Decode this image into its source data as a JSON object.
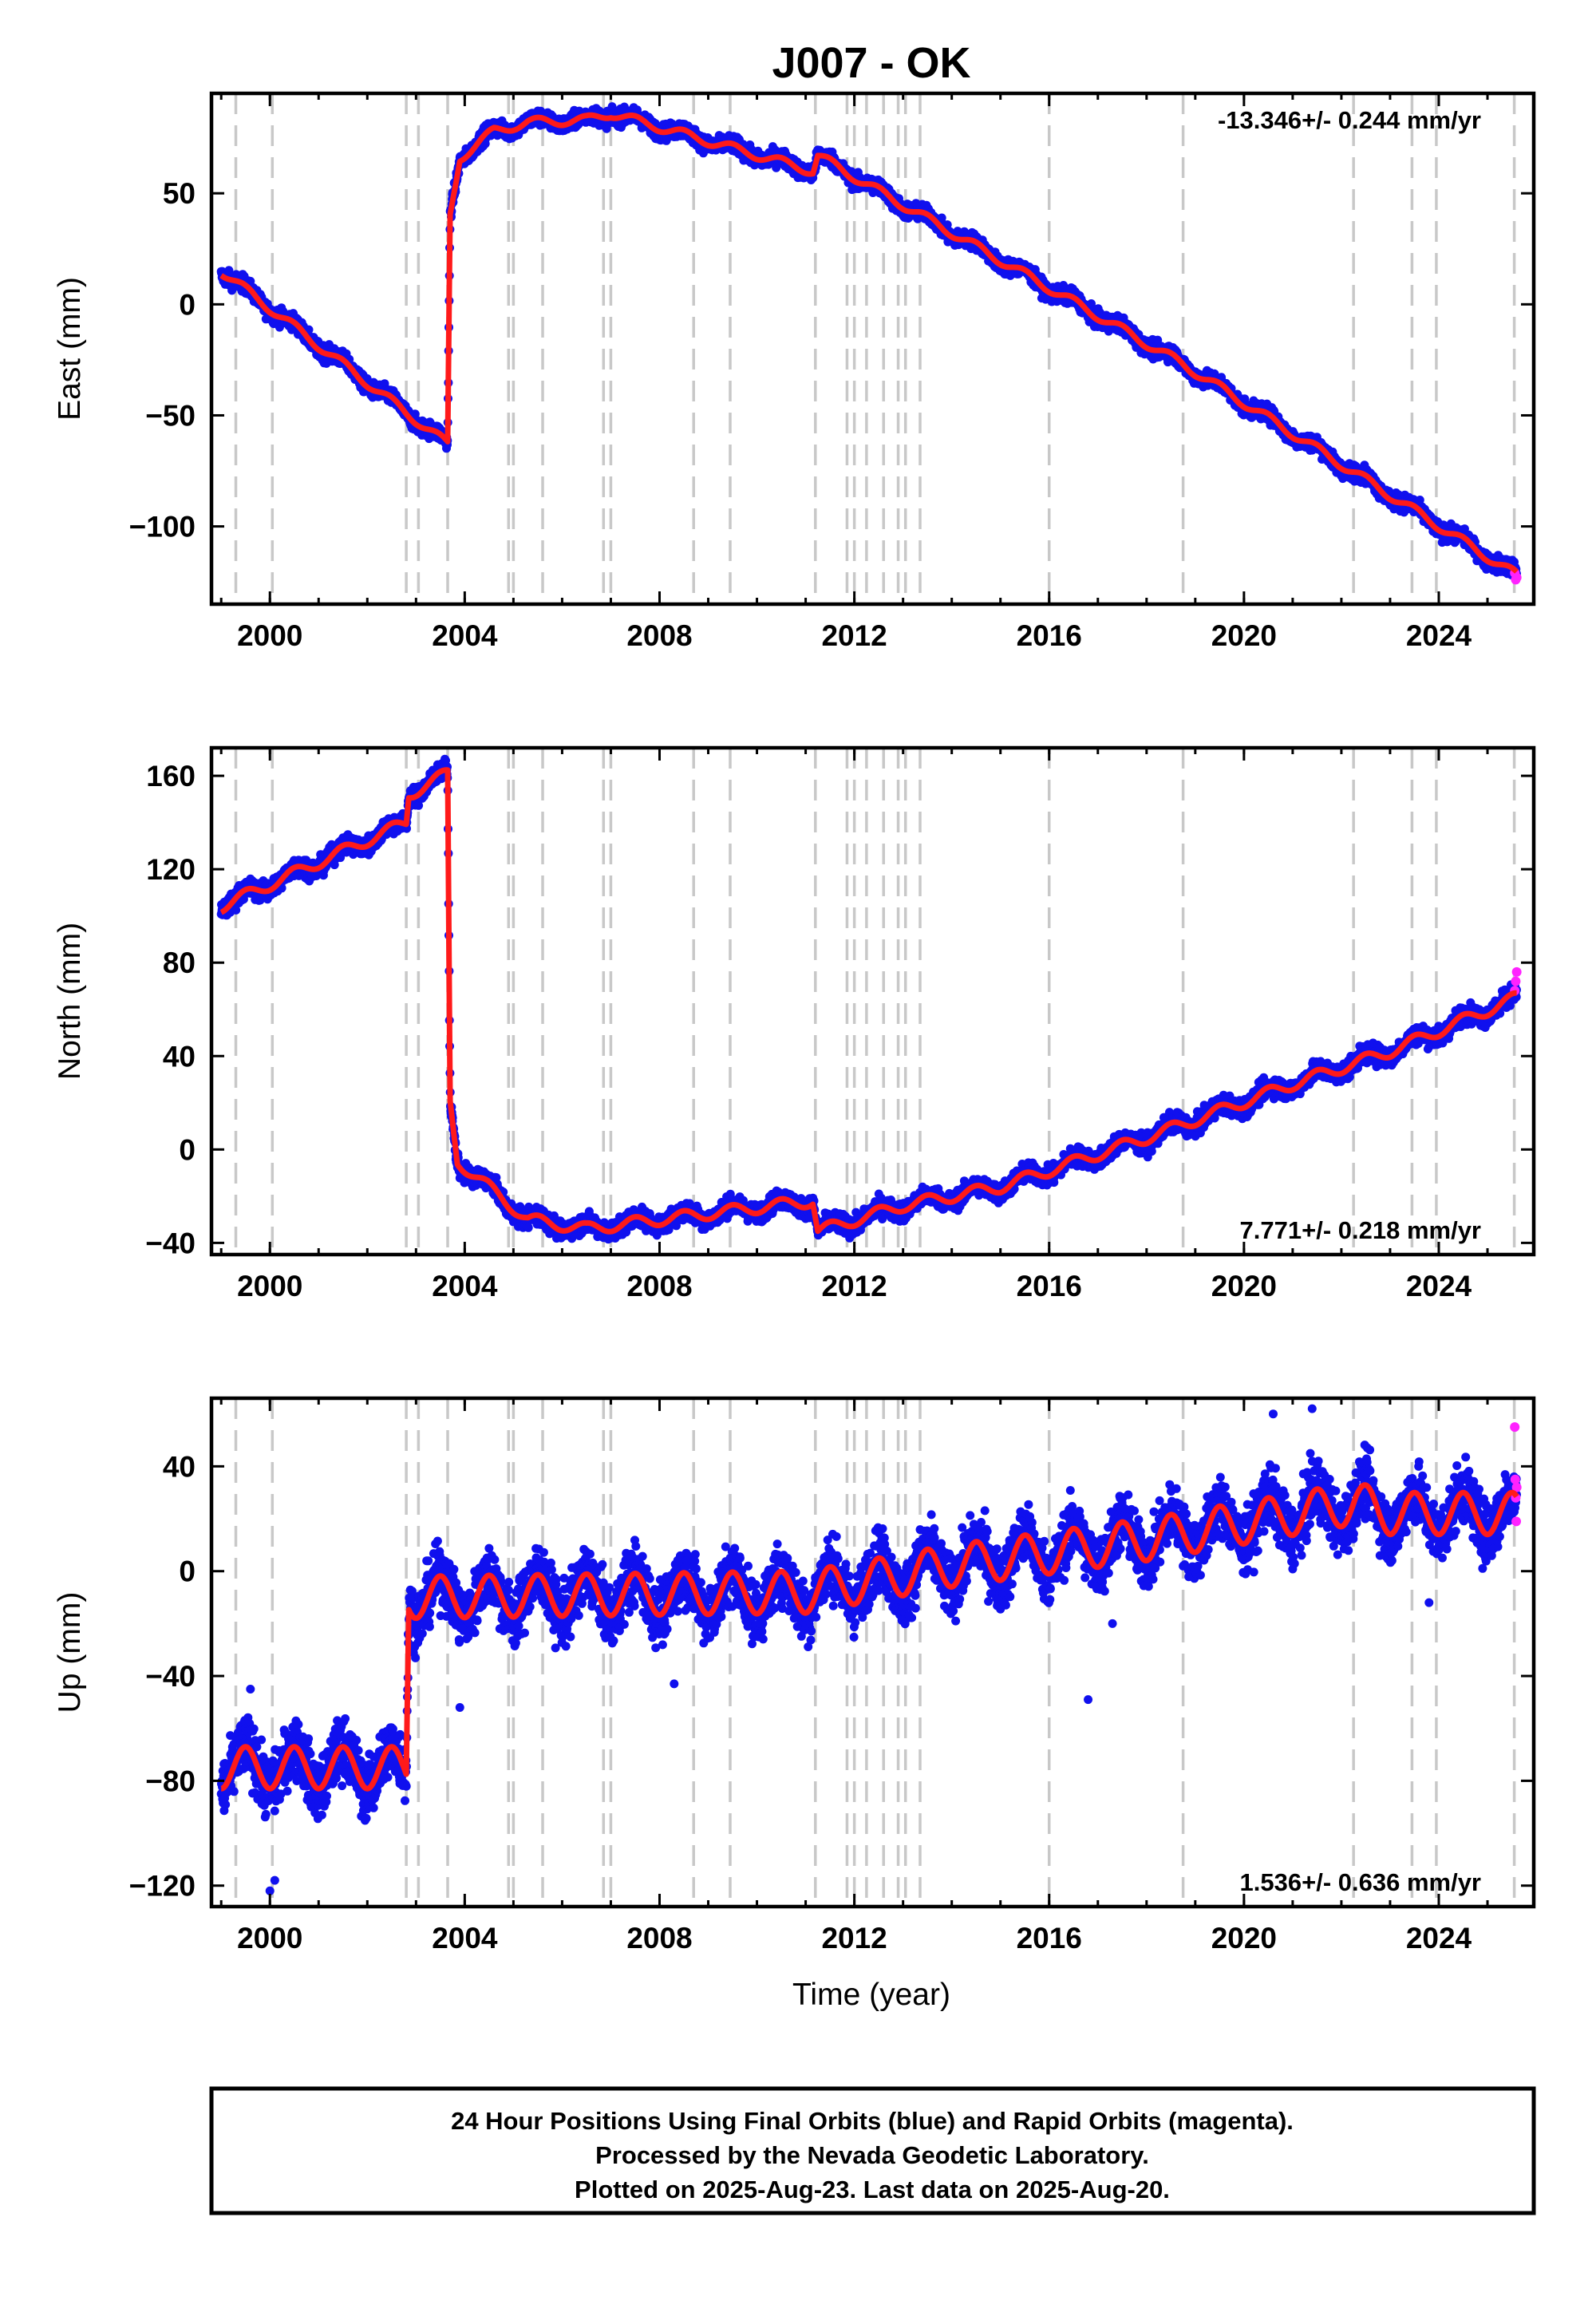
{
  "title": "J007 - OK",
  "x_axis_label": "Time (year)",
  "caption": [
    "24 Hour Positions Using Final Orbits (blue) and Rapid Orbits (magenta).",
    "Processed by the Nevada Geodetic Laboratory.",
    "Plotted on 2025-Aug-23. Last data on 2025-Aug-20."
  ],
  "colors": {
    "final_orbits": "#1010ee",
    "rapid_orbits": "#ff22ff",
    "model": "#ff1a1a",
    "event_lines": "#c8c8c8"
  },
  "chart_data": [
    {
      "type": "scatter",
      "panel": "East",
      "ylabel": "East (mm)",
      "xlim": [
        1998.8,
        2025.95
      ],
      "ylim": [
        -135,
        95
      ],
      "xticks": [
        2000,
        2004,
        2008,
        2012,
        2016,
        2020,
        2024
      ],
      "yticks": [
        -100,
        -50,
        0,
        50
      ],
      "rate_text": "-13.346+/- 0.244 mm/yr",
      "rate_position": "top-right",
      "grid": false,
      "event_lines": [
        1999.3,
        2000.05,
        2002.8,
        2003.05,
        2003.65,
        2004.9,
        2005.0,
        2005.6,
        2006.85,
        2007.0,
        2008.7,
        2009.45,
        2011.2,
        2011.85,
        2012.0,
        2012.25,
        2012.6,
        2012.9,
        2013.05,
        2013.35,
        2016.0,
        2018.75,
        2022.25,
        2023.45,
        2023.95,
        2025.55
      ],
      "model_breakpoints": [
        [
          1999.0,
          15
        ],
        [
          2003.65,
          -63
        ],
        [
          2003.7,
          40
        ],
        [
          2003.9,
          66
        ],
        [
          2004.6,
          78
        ],
        [
          2005.3,
          82
        ],
        [
          2006.5,
          83
        ],
        [
          2007.0,
          86
        ],
        [
          2011.15,
          60
        ],
        [
          2011.25,
          67
        ],
        [
          2012.5,
          51
        ],
        [
          2018.75,
          -27
        ],
        [
          2025.6,
          -122
        ]
      ],
      "seasonal_amplitude": 2,
      "scatter_noise": 2.5,
      "rapid_points": [
        [
          2025.56,
          -121
        ],
        [
          2025.58,
          -124
        ],
        [
          2025.6,
          -123
        ]
      ],
      "series": [
        {
          "name": "Final Orbits"
        },
        {
          "name": "Rapid Orbits"
        }
      ]
    },
    {
      "type": "scatter",
      "panel": "North",
      "ylabel": "North (mm)",
      "xlim": [
        1998.8,
        2025.95
      ],
      "ylim": [
        -45,
        172
      ],
      "xticks": [
        2000,
        2004,
        2008,
        2012,
        2016,
        2020,
        2024
      ],
      "yticks": [
        -40,
        0,
        40,
        80,
        120,
        160
      ],
      "rate_text": "7.771+/- 0.218 mm/yr",
      "rate_position": "bottom-right",
      "grid": false,
      "event_lines": [
        1999.3,
        2000.05,
        2002.8,
        2003.05,
        2003.65,
        2004.9,
        2005.0,
        2005.6,
        2006.85,
        2007.0,
        2008.7,
        2009.45,
        2011.2,
        2011.85,
        2012.0,
        2012.25,
        2012.6,
        2012.9,
        2013.05,
        2013.35,
        2016.0,
        2018.75,
        2022.25,
        2023.45,
        2023.95,
        2025.55
      ],
      "model_breakpoints": [
        [
          1999.0,
          104
        ],
        [
          2002.8,
          140
        ],
        [
          2002.85,
          152
        ],
        [
          2003.65,
          161
        ],
        [
          2003.7,
          20
        ],
        [
          2003.85,
          -5
        ],
        [
          2004.6,
          -18
        ],
        [
          2005.3,
          -30
        ],
        [
          2006.5,
          -34
        ],
        [
          2008.0,
          -30
        ],
        [
          2011.15,
          -22
        ],
        [
          2011.25,
          -35
        ],
        [
          2013.0,
          -24
        ],
        [
          2015.0,
          -16
        ],
        [
          2018.0,
          5
        ],
        [
          2021.0,
          28
        ],
        [
          2023.0,
          42
        ],
        [
          2025.6,
          65
        ]
      ],
      "seasonal_amplitude": 2.5,
      "scatter_noise": 2.8,
      "rapid_points": [
        [
          2025.56,
          68
        ],
        [
          2025.58,
          72
        ],
        [
          2025.6,
          76
        ]
      ],
      "series": [
        {
          "name": "Final Orbits"
        },
        {
          "name": "Rapid Orbits"
        }
      ]
    },
    {
      "type": "scatter",
      "panel": "Up",
      "ylabel": "Up (mm)",
      "xlim": [
        1998.8,
        2025.95
      ],
      "ylim": [
        -128,
        66
      ],
      "xticks": [
        2000,
        2004,
        2008,
        2012,
        2016,
        2020,
        2024
      ],
      "yticks": [
        -120,
        -80,
        -40,
        0,
        40
      ],
      "rate_text": "1.536+/- 0.636 mm/yr",
      "rate_position": "bottom-right",
      "grid": false,
      "event_lines": [
        1999.3,
        2000.05,
        2002.8,
        2003.05,
        2003.65,
        2004.9,
        2005.0,
        2005.6,
        2006.85,
        2007.0,
        2008.7,
        2009.45,
        2011.2,
        2011.85,
        2012.0,
        2012.25,
        2012.6,
        2012.9,
        2013.05,
        2013.35,
        2016.0,
        2018.75,
        2022.25,
        2023.45,
        2023.95,
        2025.55
      ],
      "model_breakpoints": [
        [
          1999.0,
          -75
        ],
        [
          2002.8,
          -75
        ],
        [
          2002.85,
          -10
        ],
        [
          2011.0,
          -8
        ],
        [
          2014.0,
          2
        ],
        [
          2018.0,
          12
        ],
        [
          2020.5,
          20
        ],
        [
          2022.3,
          26
        ],
        [
          2023.0,
          22
        ],
        [
          2025.6,
          22
        ]
      ],
      "seasonal_amplitude": 8,
      "scatter_noise": 8,
      "rapid_points": [
        [
          2025.56,
          55
        ],
        [
          2025.57,
          35
        ],
        [
          2025.58,
          28
        ],
        [
          2025.59,
          19
        ],
        [
          2025.6,
          32
        ]
      ],
      "series": [
        {
          "name": "Final Orbits"
        },
        {
          "name": "Rapid Orbits"
        }
      ]
    }
  ]
}
